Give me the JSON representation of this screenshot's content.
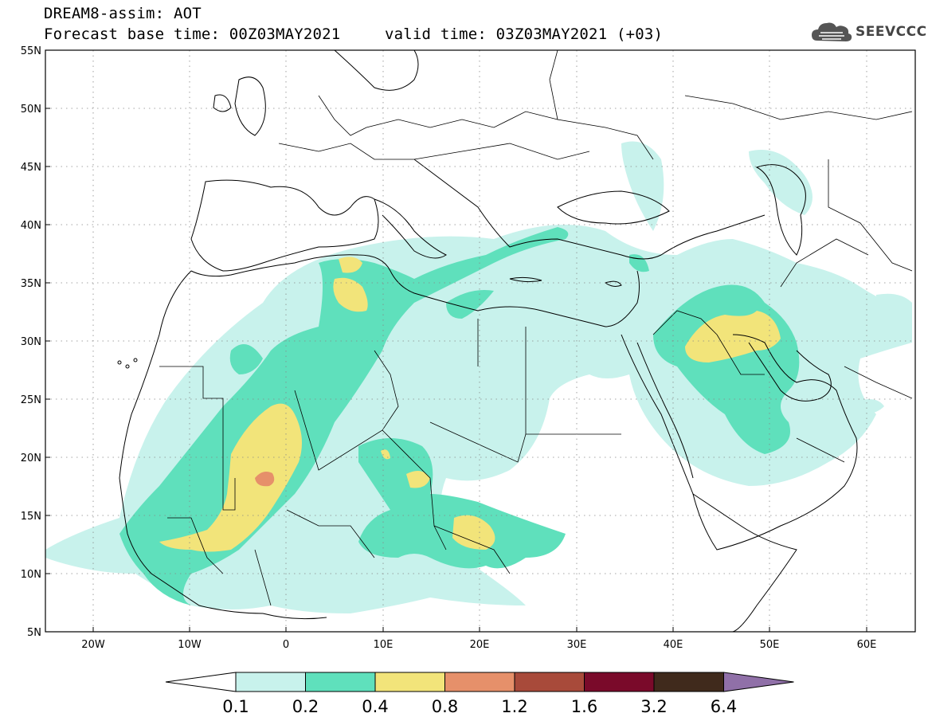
{
  "header": {
    "model_title": "DREAM8-assim: AOT",
    "base_time": "Forecast base time: 00Z03MAY2021",
    "valid_time": "valid time: 03Z03MAY2021 (+03)",
    "logo_text": "SEEVCCC",
    "logo_icon": "cloud-icon"
  },
  "map": {
    "lon_range": [
      -25,
      65
    ],
    "lat_range": [
      5,
      55
    ],
    "lat_labels": [
      "55N",
      "50N",
      "45N",
      "40N",
      "35N",
      "30N",
      "25N",
      "20N",
      "15N",
      "10N",
      "5N"
    ],
    "lon_labels": [
      "20W",
      "10W",
      "0",
      "10E",
      "20E",
      "30E",
      "40E",
      "50E",
      "60E"
    ],
    "gridlines": "dotted"
  },
  "legend": {
    "variable": "AOT",
    "bins": [
      {
        "color": "#c8f2ec"
      },
      {
        "color": "#5fe0bc"
      },
      {
        "color": "#f2e47a"
      },
      {
        "color": "#e6906a"
      },
      {
        "color": "#a84a3a"
      },
      {
        "color": "#7a0a2a"
      },
      {
        "color": "#402a1c"
      },
      {
        "color": "#9070a8"
      }
    ],
    "left_arrow_color": "#ffffff",
    "labels": [
      "0.1",
      "0.2",
      "0.4",
      "0.8",
      "1.2",
      "1.6",
      "3.2",
      "6.4"
    ]
  },
  "colors": {
    "low": "#c8f2ec",
    "moderate": "#5fe0bc",
    "high": "#f2e47a",
    "very_high": "#e6906a",
    "border": "#000000"
  }
}
